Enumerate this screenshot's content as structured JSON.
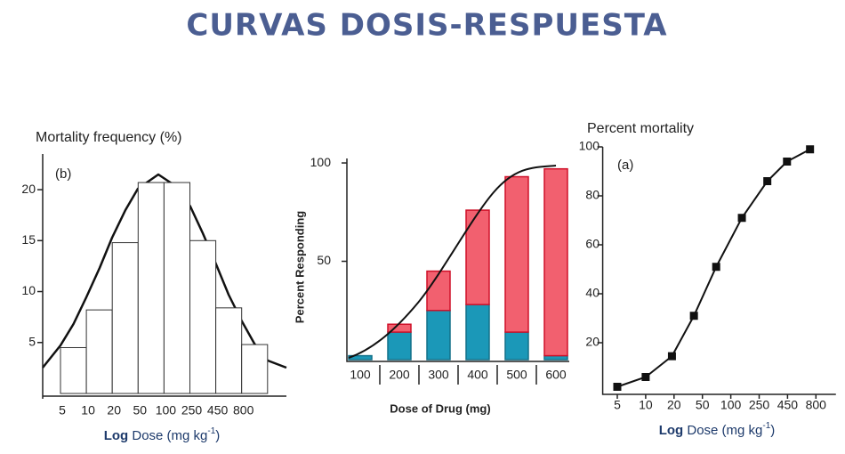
{
  "title": "CURVAS DOSIS-RESPUESTA",
  "chart_data": [
    {
      "type": "bar",
      "title": "Mortality frequency (%)",
      "annotation": "(b)",
      "categories": [
        "5",
        "10",
        "20",
        "50",
        "100",
        "250",
        "450",
        "800"
      ],
      "values": [
        4.5,
        8.2,
        14.8,
        20.7,
        20.7,
        15,
        8.4,
        4.8
      ],
      "color": "#ffffff",
      "ylim": [
        0,
        23.5
      ],
      "yticks": [
        5,
        10,
        15,
        20
      ],
      "xlabel": [
        "Log",
        " Dose (mg kg",
        "-1",
        ")"
      ]
    },
    {
      "type": "stacked",
      "ylabel": "Percent Responding",
      "xlabel": "Dose of Drug (mg)",
      "categories": [
        "100",
        "200",
        "300",
        "400",
        "500",
        "600"
      ],
      "series": [
        {
          "color": "#1b98b8",
          "values": [
            2,
            14,
            25,
            28,
            14,
            2
          ]
        },
        {
          "color": "#f2606f",
          "values": [
            0,
            4,
            20,
            48,
            79,
            95
          ]
        }
      ],
      "ylim": [
        0,
        105
      ],
      "yticks": [
        50,
        100
      ]
    },
    {
      "type": "line",
      "title": "Percent mortality",
      "annotation": "(a)",
      "x": [
        5,
        10,
        19,
        38,
        70,
        143,
        296,
        445,
        710
      ],
      "values": [
        2,
        6,
        14.5,
        31,
        51,
        71,
        86,
        94,
        99
      ],
      "color": "#111111",
      "xscale": "log",
      "xlim": [
        3.5,
        1200
      ],
      "xticks": [
        5,
        10,
        20,
        50,
        100,
        250,
        450,
        800
      ],
      "ylim": [
        0,
        100
      ],
      "yticks": [
        20,
        40,
        60,
        80,
        100
      ],
      "xlabel": [
        "Log",
        " Dose (mg kg",
        "-1",
        ")"
      ]
    }
  ]
}
